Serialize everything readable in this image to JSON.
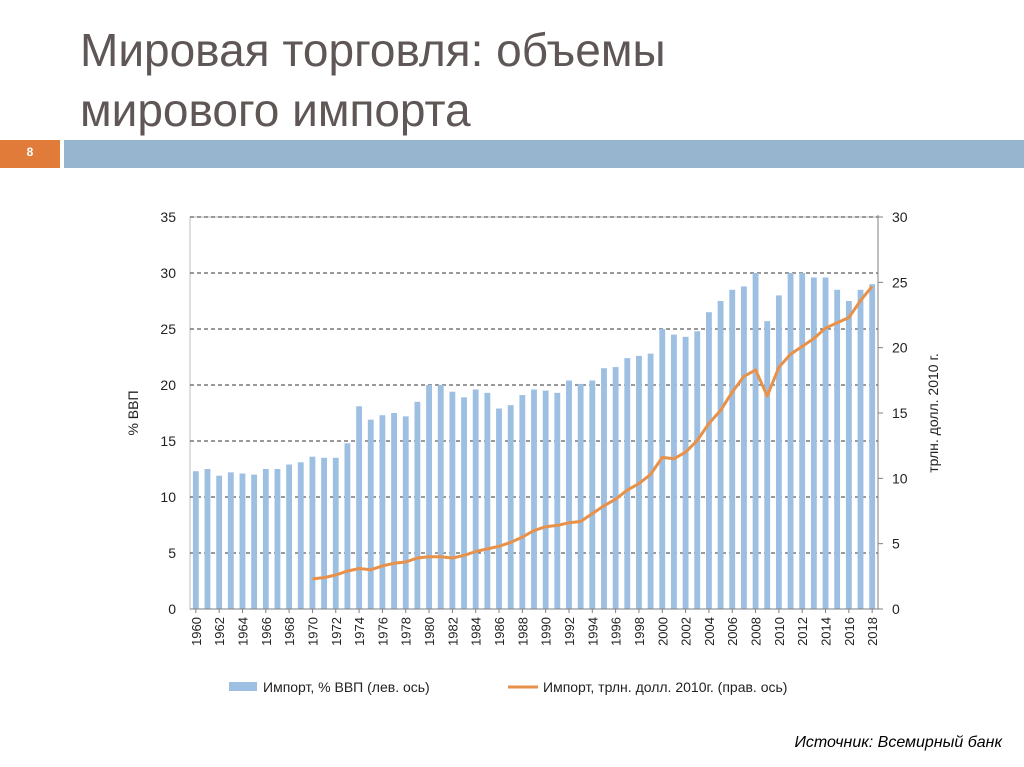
{
  "slide": {
    "title_line1": "Мировая торговля: объемы",
    "title_line2": "мирового импорта",
    "number": "8",
    "source": "Источник: Всемирный банк"
  },
  "colors": {
    "accent": "#e07b39",
    "band": "#98b5cf",
    "bars": "#9dbfe2",
    "line": "#e8914a",
    "title": "#5f5656"
  },
  "chart_data": {
    "type": "bar",
    "x": [
      1960,
      1961,
      1962,
      1963,
      1964,
      1965,
      1966,
      1967,
      1968,
      1969,
      1970,
      1971,
      1972,
      1973,
      1974,
      1975,
      1976,
      1977,
      1978,
      1979,
      1980,
      1981,
      1982,
      1983,
      1984,
      1985,
      1986,
      1987,
      1988,
      1989,
      1990,
      1991,
      1992,
      1993,
      1994,
      1995,
      1996,
      1997,
      1998,
      1999,
      2000,
      2001,
      2002,
      2003,
      2004,
      2005,
      2006,
      2007,
      2008,
      2009,
      2010,
      2011,
      2012,
      2013,
      2014,
      2015,
      2016,
      2017,
      2018
    ],
    "x_tick_labels": [
      "1960",
      "1962",
      "1964",
      "1966",
      "1968",
      "1970",
      "1972",
      "1974",
      "1976",
      "1978",
      "1980",
      "1982",
      "1984",
      "1986",
      "1988",
      "1990",
      "1992",
      "1994",
      "1996",
      "1998",
      "2000",
      "2002",
      "2004",
      "2006",
      "2008",
      "2010",
      "2012",
      "2014",
      "2016",
      "2018"
    ],
    "series": [
      {
        "name": "Импорт, % ВВП (лев. ось)",
        "type": "bar",
        "axis": "left",
        "values": [
          12.3,
          12.5,
          11.9,
          12.2,
          12.1,
          12.0,
          12.5,
          12.5,
          12.9,
          13.1,
          13.6,
          13.5,
          13.5,
          14.8,
          18.1,
          16.9,
          17.3,
          17.5,
          17.2,
          18.5,
          20.0,
          20.0,
          19.4,
          18.9,
          19.6,
          19.3,
          17.9,
          18.2,
          19.1,
          19.6,
          19.5,
          19.3,
          20.4,
          20.1,
          20.4,
          21.5,
          21.6,
          22.4,
          22.6,
          22.8,
          25.0,
          24.5,
          24.3,
          24.8,
          26.5,
          27.5,
          28.5,
          28.8,
          30.0,
          25.7,
          28.0,
          30.0,
          30.0,
          29.6,
          29.6,
          28.5,
          27.5,
          28.5,
          29.0
        ]
      },
      {
        "name": "Импорт, трлн. долл. 2010г. (прав. ось)",
        "type": "line",
        "axis": "right",
        "values": [
          null,
          null,
          null,
          null,
          null,
          null,
          null,
          null,
          null,
          null,
          2.3,
          2.4,
          2.6,
          2.9,
          3.1,
          3.0,
          3.3,
          3.5,
          3.6,
          3.9,
          4.0,
          4.0,
          3.9,
          4.1,
          4.4,
          4.6,
          4.8,
          5.1,
          5.5,
          6.0,
          6.3,
          6.4,
          6.6,
          6.7,
          7.3,
          7.9,
          8.4,
          9.1,
          9.6,
          10.3,
          11.6,
          11.5,
          12.0,
          12.9,
          14.2,
          15.2,
          16.6,
          17.8,
          18.3,
          16.3,
          18.5,
          19.5,
          20.1,
          20.7,
          21.5,
          21.9,
          22.3,
          23.6,
          24.7
        ]
      }
    ],
    "y_left": {
      "label": "% ВВП",
      "min": 0,
      "max": 35,
      "ticks": [
        0,
        5,
        10,
        15,
        20,
        25,
        30,
        35
      ]
    },
    "y_right": {
      "label": "трлн. долл. 2010 г.",
      "min": 0,
      "max": 30,
      "ticks": [
        0,
        5,
        10,
        15,
        20,
        25,
        30
      ]
    },
    "grid": "horizontal-dashed",
    "legend": "bottom"
  }
}
